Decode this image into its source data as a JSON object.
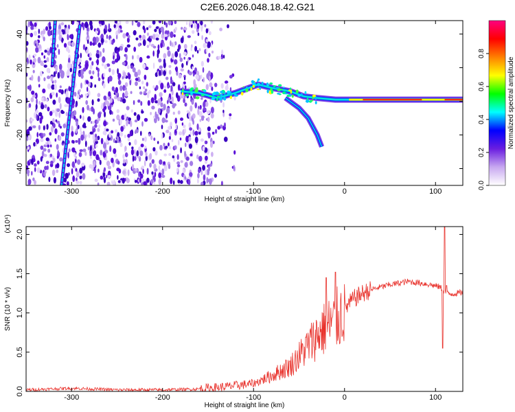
{
  "title": "C2E6.2026.048.18.42.G21",
  "chart_data": [
    {
      "type": "heatmap",
      "subtype": "radio-occultation-spectrogram",
      "xlabel": "Height of straight line (km)",
      "ylabel": "Frequency (Hz)",
      "xlim": [
        -350,
        130
      ],
      "ylim": [
        -50,
        48
      ],
      "xticks": [
        -300,
        -200,
        -100,
        0,
        100
      ],
      "xtick_labels": [
        "-300",
        "-200",
        "-100",
        "0",
        "100"
      ],
      "yticks": [
        -40,
        -20,
        0,
        20,
        40
      ],
      "ytick_labels": [
        "-40",
        "-20",
        "0",
        "20",
        "40"
      ],
      "colorbar": {
        "label": "Normalized spectral amplitude",
        "range": [
          0.0,
          1.0
        ],
        "ticks": [
          0.0,
          0.2,
          0.4,
          0.6,
          0.8
        ],
        "tick_labels": [
          "0.0",
          "0.2",
          "0.4",
          "0.6",
          "0.8"
        ],
        "colors": [
          "#ffffff",
          "#c8a8f0",
          "#6a1ee0",
          "#0000ff",
          "#00ffff",
          "#00ff00",
          "#ffff00",
          "#ff8000",
          "#ff0000",
          "#ff0080"
        ]
      },
      "features": {
        "noise_region_x": [
          -350,
          -145
        ],
        "tone1": {
          "x_top": -318,
          "y_top": 48,
          "x_bottom": -321,
          "y_bottom": 22
        },
        "tone2": {
          "x_top": -291,
          "y_top": 45,
          "x_bottom": -311,
          "y_bottom": -50
        },
        "main_signal": [
          [
            -180,
            6
          ],
          [
            -160,
            5
          ],
          [
            -140,
            2
          ],
          [
            -120,
            5
          ],
          [
            -105,
            8
          ],
          [
            -95,
            10
          ],
          [
            -80,
            8
          ],
          [
            -60,
            6
          ],
          [
            -45,
            3
          ],
          [
            -30,
            2
          ],
          [
            -10,
            1
          ],
          [
            0,
            1
          ],
          [
            50,
            1
          ],
          [
            100,
            1
          ],
          [
            130,
            1
          ]
        ],
        "branch": [
          [
            -65,
            2
          ],
          [
            -50,
            -4
          ],
          [
            -40,
            -10
          ],
          [
            -30,
            -20
          ],
          [
            -25,
            -27
          ]
        ]
      }
    },
    {
      "type": "line",
      "color": "#e8302a",
      "xlabel": "Height of straight line (km)",
      "ylabel": "SNR (10 * v/v)",
      "scale_note": "(x10⁴)",
      "xlim": [
        -350,
        130
      ],
      "ylim": [
        0,
        2.1
      ],
      "xticks": [
        -300,
        -200,
        -100,
        0,
        100
      ],
      "xtick_labels": [
        "-300",
        "-200",
        "-100",
        "0",
        "100"
      ],
      "yticks": [
        0.0,
        0.5,
        1.0,
        1.5,
        2.0
      ],
      "ytick_labels": [
        "0.0",
        "0.5",
        "1.0",
        "1.5",
        "2.0"
      ],
      "envelope": {
        "x": [
          -350,
          -300,
          -250,
          -200,
          -160,
          -130,
          -100,
          -80,
          -60,
          -50,
          -40,
          -30,
          -20,
          -10,
          -5,
          0,
          10,
          20,
          30,
          50,
          70,
          90,
          105,
          108,
          112,
          115,
          130
        ],
        "y": [
          0.02,
          0.04,
          0.02,
          0.02,
          0.03,
          0.06,
          0.1,
          0.2,
          0.32,
          0.45,
          0.58,
          0.72,
          0.82,
          0.9,
          0.96,
          1.05,
          1.18,
          1.25,
          1.3,
          1.36,
          1.4,
          1.37,
          1.33,
          1.3,
          1.25,
          1.24,
          1.26
        ]
      },
      "spikes": {
        "x": [
          -20,
          -10,
          108,
          110,
          112
        ],
        "y": [
          1.45,
          1.52,
          0.55,
          2.1,
          1.35
        ]
      }
    }
  ]
}
